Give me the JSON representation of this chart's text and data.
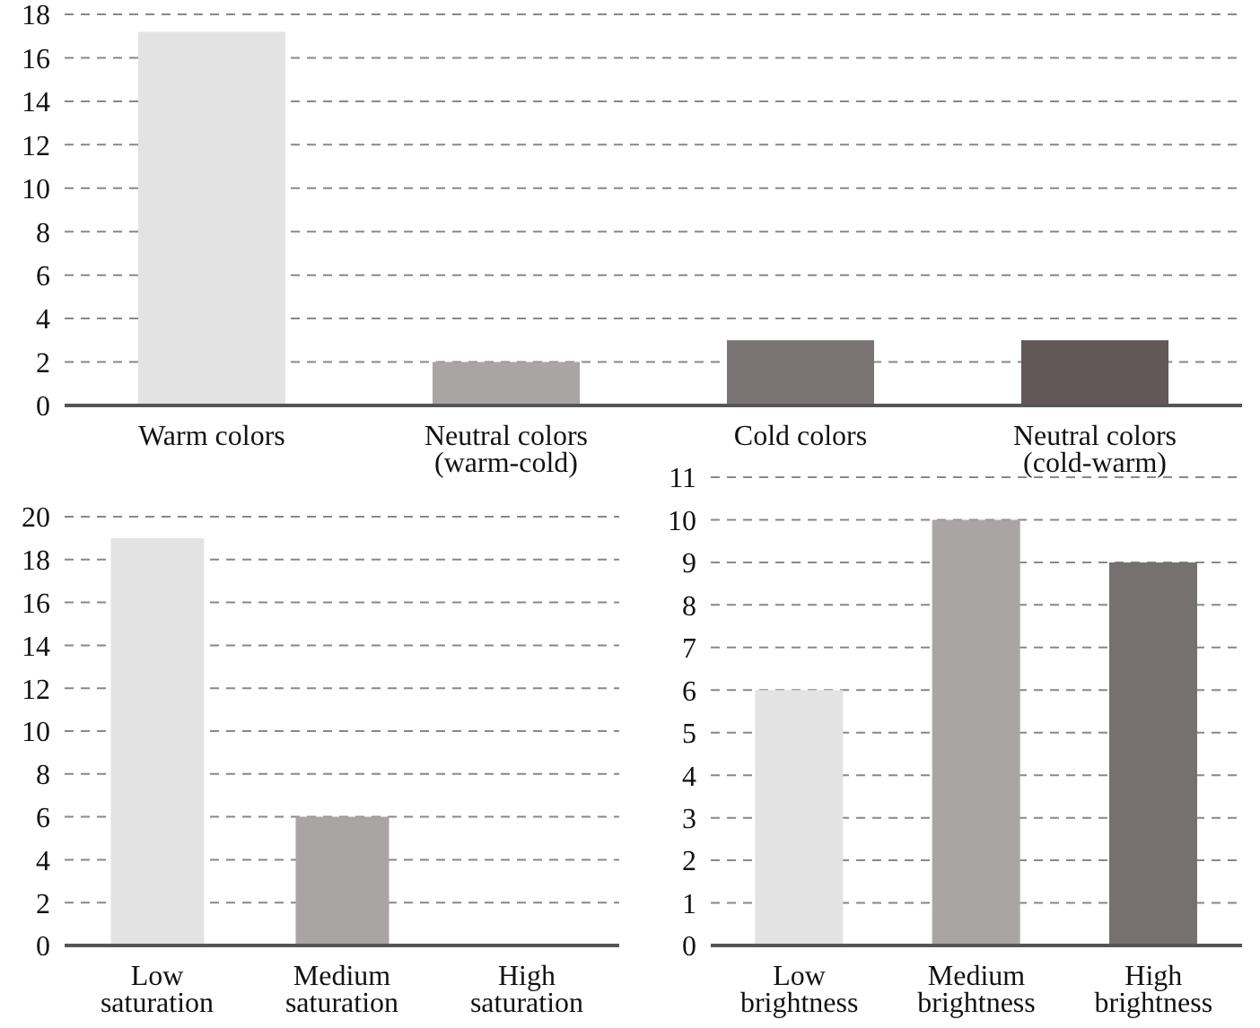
{
  "chart_data": [
    {
      "type": "bar",
      "categories": [
        "Warm colors",
        "Neutral colors\n(warm-cold)",
        "Cold colors",
        "Neutral colors\n(cold-warm)"
      ],
      "values": [
        17.2,
        2,
        3,
        3
      ],
      "colors": [
        "#e3e3e3",
        "#a8a5a4",
        "#7a7574",
        "#615858"
      ],
      "ylim": [
        0,
        18
      ],
      "yticks": [
        0,
        2,
        4,
        6,
        8,
        10,
        12,
        14,
        16,
        18
      ],
      "grid": "y"
    },
    {
      "type": "bar",
      "categories": [
        "Low\nsaturation",
        "Medium\nsaturation",
        "High\nsaturation"
      ],
      "values": [
        19,
        6,
        0
      ],
      "colors": [
        "#e3e3e3",
        "#a8a5a4",
        "#767170"
      ],
      "ylim": [
        0,
        20
      ],
      "yticks": [
        0,
        2,
        4,
        6,
        8,
        10,
        12,
        14,
        16,
        18,
        20
      ],
      "grid": "y"
    },
    {
      "type": "bar",
      "categories": [
        "Low\nbrightness",
        "Medium\nbrightness",
        "High\nbrightness"
      ],
      "values": [
        6,
        10,
        9
      ],
      "colors": [
        "#e3e3e3",
        "#a8a5a4",
        "#767170"
      ],
      "ylim": [
        0,
        11
      ],
      "yticks": [
        0,
        1,
        2,
        3,
        4,
        5,
        6,
        7,
        8,
        9,
        10,
        11
      ],
      "grid": "y"
    }
  ]
}
